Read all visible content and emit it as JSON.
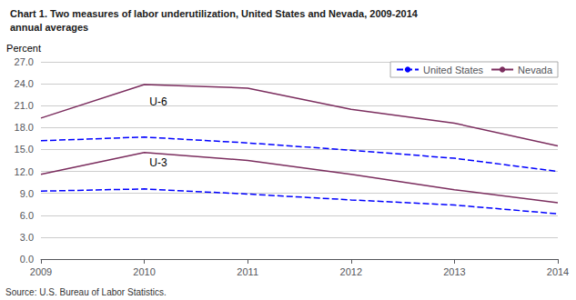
{
  "chart_data": {
    "type": "line",
    "title": "Chart 1. Two measures of labor underutilization, United States and Nevada, 2009-2014",
    "subtitle": "annual averages",
    "ylabel": "Percent",
    "source": "Source: U.S. Bureau of Labor Statistics.",
    "x": [
      2009,
      2010,
      2011,
      2012,
      2013,
      2014
    ],
    "series": [
      {
        "name": "Nevada",
        "color": "#7B2D5E",
        "line_style": "solid",
        "values": [
          19.3,
          23.9,
          23.4,
          20.5,
          18.6,
          15.5
        ]
      },
      {
        "name": "United States",
        "color": "#0000FF",
        "line_style": "dashed",
        "values": [
          16.2,
          16.7,
          15.9,
          14.9,
          13.8,
          12.0
        ]
      },
      {
        "name": "Nevada",
        "color": "#7B2D5E",
        "line_style": "solid",
        "values": [
          11.6,
          14.6,
          13.5,
          11.6,
          9.5,
          7.7
        ]
      },
      {
        "name": "United States",
        "color": "#0000FF",
        "line_style": "dashed",
        "values": [
          9.3,
          9.6,
          8.9,
          8.1,
          7.4,
          6.2
        ]
      }
    ],
    "legend_order": [
      "United States",
      "Nevada"
    ],
    "annotations": [
      {
        "text": "U-6",
        "x": 2010.05,
        "y": 20.8
      },
      {
        "text": "U-3",
        "x": 2010.05,
        "y": 12.4
      }
    ],
    "xlim": [
      2009,
      2014
    ],
    "xticks": [
      2009,
      2010,
      2011,
      2012,
      2013,
      2014
    ],
    "ylim": [
      0,
      27
    ],
    "yticks": [
      {
        "value": 0,
        "label": "0.0"
      },
      {
        "value": 3,
        "label": "3.0"
      },
      {
        "value": 6,
        "label": "6.0"
      },
      {
        "value": 9,
        "label": "9.0"
      },
      {
        "value": 12,
        "label": "12.0"
      },
      {
        "value": 15,
        "label": "15.0"
      },
      {
        "value": 18,
        "label": "18.0"
      },
      {
        "value": 21,
        "label": "21.0"
      },
      {
        "value": 24,
        "label": "24.0"
      },
      {
        "value": 27,
        "label": "27.0"
      }
    ],
    "grid": true,
    "legend": "upper right"
  }
}
